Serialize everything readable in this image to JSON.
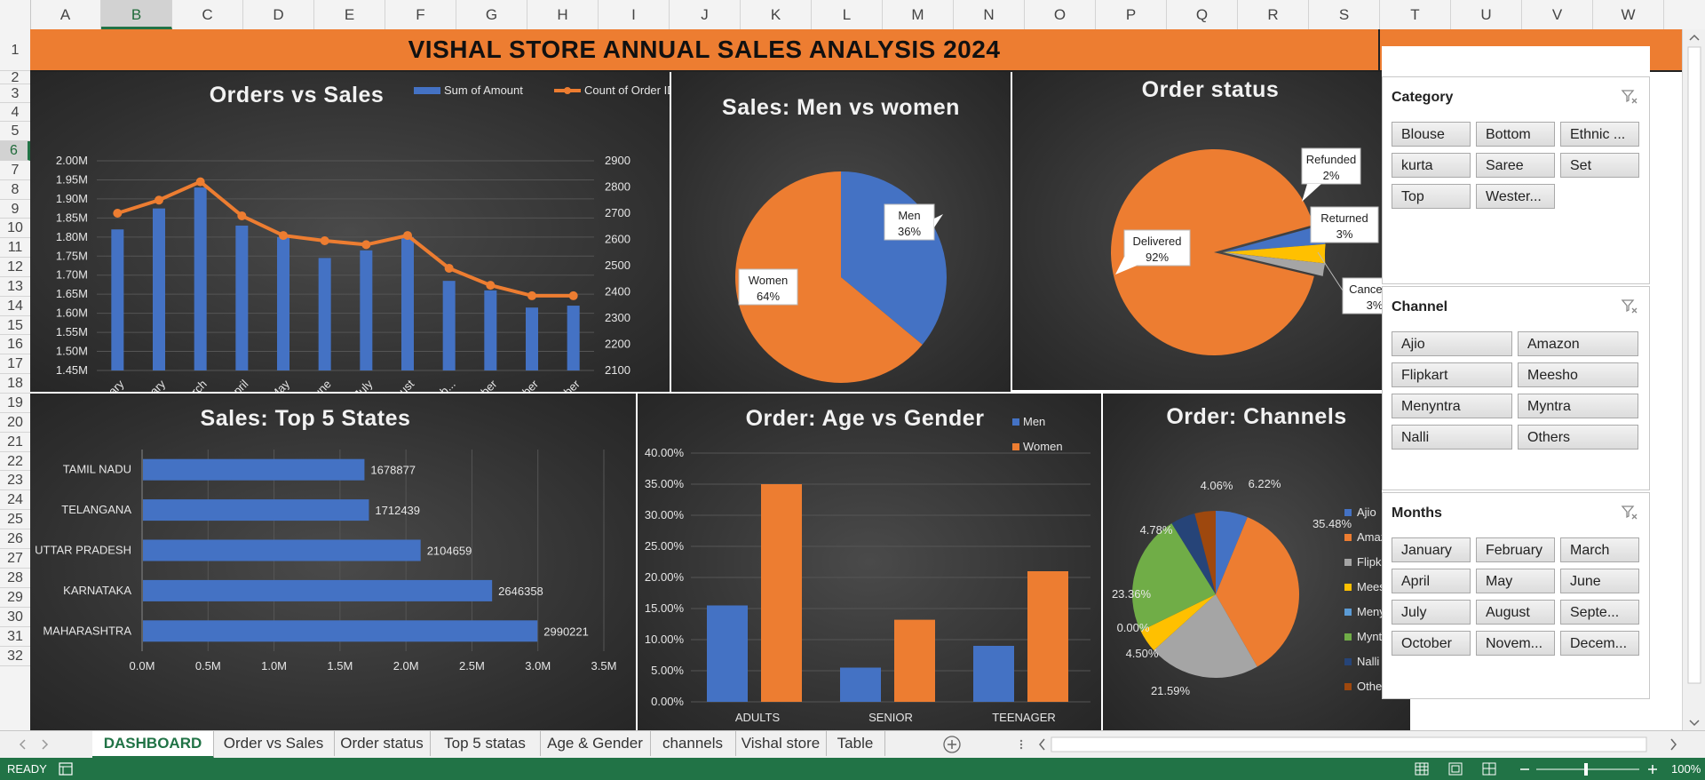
{
  "columns": [
    "A",
    "B",
    "C",
    "D",
    "E",
    "F",
    "G",
    "H",
    "I",
    "J",
    "K",
    "L",
    "M",
    "N",
    "O",
    "P",
    "Q",
    "R",
    "S",
    "T",
    "U",
    "V",
    "W"
  ],
  "rows": [
    "1",
    "2",
    "3",
    "4",
    "5",
    "6",
    "7",
    "8",
    "9",
    "10",
    "11",
    "12",
    "13",
    "14",
    "15",
    "16",
    "17",
    "18",
    "19",
    "20",
    "21",
    "22",
    "23",
    "24",
    "25",
    "26",
    "27",
    "28",
    "29",
    "30",
    "31",
    "32"
  ],
  "selected_column": "B",
  "selected_row": "6",
  "title": "VISHAL STORE ANNUAL SALES ANALYSIS 2024",
  "orders_vs_sales": {
    "title": "Orders vs Sales",
    "legend": [
      "Sum of Amount",
      "Count of Order ID"
    ],
    "left_ticks": [
      "2.00M",
      "1.95M",
      "1.90M",
      "1.85M",
      "1.80M",
      "1.75M",
      "1.70M",
      "1.65M",
      "1.60M",
      "1.55M",
      "1.50M",
      "1.45M"
    ],
    "right_ticks": [
      "2900",
      "2800",
      "2700",
      "2600",
      "2500",
      "2400",
      "2300",
      "2200",
      "2100"
    ]
  },
  "men_women": {
    "title": "Sales: Men vs women",
    "men_label": "Men",
    "men_pct": "36%",
    "women_label": "Women",
    "women_pct": "64%"
  },
  "order_status": {
    "title": "Order status",
    "labels": [
      {
        "name": "Delivered",
        "pct": "92%"
      },
      {
        "name": "Refunded",
        "pct": "2%"
      },
      {
        "name": "Returned",
        "pct": "3%"
      },
      {
        "name": "Cancelled",
        "pct": "3%"
      }
    ]
  },
  "top_states": {
    "title": "Sales: Top 5 States",
    "xticks": [
      "0.0M",
      "0.5M",
      "1.0M",
      "1.5M",
      "2.0M",
      "2.5M",
      "3.0M",
      "3.5M"
    ]
  },
  "age_gender": {
    "title": "Order: Age vs Gender",
    "legend": [
      "Men",
      "Women"
    ],
    "yticks": [
      "40.00%",
      "35.00%",
      "30.00%",
      "25.00%",
      "20.00%",
      "15.00%",
      "10.00%",
      "5.00%",
      "0.00%"
    ]
  },
  "channels_chart": {
    "title": "Order: Channels"
  },
  "chart_data": [
    {
      "type": "bar",
      "title": "Orders vs Sales",
      "categories": [
        "January",
        "February",
        "March",
        "April",
        "May",
        "June",
        "July",
        "August",
        "Septemb...",
        "October",
        "November",
        "December"
      ],
      "series": [
        {
          "name": "Sum of Amount",
          "type": "bar",
          "axis": "left",
          "values": [
            1.82,
            1.875,
            1.93,
            1.83,
            1.8,
            1.745,
            1.765,
            1.8,
            1.685,
            1.66,
            1.615,
            1.62
          ]
        },
        {
          "name": "Count of Order ID",
          "type": "line",
          "axis": "right",
          "values": [
            2700,
            2750,
            2820,
            2690,
            2615,
            2595,
            2580,
            2615,
            2490,
            2425,
            2385,
            2385
          ]
        }
      ],
      "ylim": [
        1.45,
        2.0
      ],
      "y2lim": [
        2100,
        2900
      ],
      "legend": "top-right"
    },
    {
      "type": "pie",
      "title": "Sales: Men vs women",
      "labels": [
        "Men",
        "Women"
      ],
      "values": [
        36,
        64
      ]
    },
    {
      "type": "pie",
      "title": "Order status",
      "labels": [
        "Delivered",
        "Refunded",
        "Returned",
        "Cancelled"
      ],
      "values": [
        92,
        2,
        3,
        3
      ]
    },
    {
      "type": "bar",
      "orientation": "horizontal",
      "title": "Sales: Top 5 States",
      "categories": [
        "TAMIL NADU",
        "TELANGANA",
        "UTTAR PRADESH",
        "KARNATAKA",
        "MAHARASHTRA"
      ],
      "values": [
        1678877,
        1712439,
        2104659,
        2646358,
        2990221
      ],
      "labels": [
        "1678877",
        "1712439",
        "2104659",
        "2646358",
        "2990221"
      ],
      "xlim": [
        0,
        3.5
      ]
    },
    {
      "type": "bar",
      "title": "Order: Age vs Gender",
      "categories": [
        "ADULTS",
        "SENIOR",
        "TEENAGER"
      ],
      "series": [
        {
          "name": "Men",
          "values": [
            15.5,
            5.5,
            9.0
          ]
        },
        {
          "name": "Women",
          "values": [
            35.0,
            13.2,
            21.0
          ]
        }
      ],
      "ylim": [
        0,
        40
      ],
      "legend": "top-right"
    },
    {
      "type": "pie",
      "title": "Order: Channels",
      "labels": [
        "Ajio",
        "Amazon",
        "Flipkart",
        "Meesho",
        "Menyntra",
        "Myntra",
        "Nalli",
        "Others"
      ],
      "values": [
        6.22,
        35.48,
        21.59,
        4.5,
        0.0,
        23.36,
        4.78,
        4.06
      ],
      "value_labels": [
        "6.22%",
        "35.48%",
        "21.59%",
        "4.50%",
        "0.00%",
        "23.36%",
        "4.78%",
        "4.06%"
      ],
      "legend": "right"
    }
  ],
  "colors": {
    "blue": "#4472c4",
    "orange": "#ed7d31",
    "gray": "#a5a5a5",
    "yellow": "#ffc000",
    "light_blue": "#5b9bd5",
    "green": "#70ad47",
    "navy": "#264478",
    "rust": "#9e480e",
    "excel_green": "#217346"
  },
  "slicers": {
    "category": {
      "title": "Category",
      "items": [
        "Blouse",
        "Bottom",
        "Ethnic ...",
        "kurta",
        "Saree",
        "Set",
        "Top",
        "Wester..."
      ]
    },
    "channel": {
      "title": "Channel",
      "items": [
        "Ajio",
        "Amazon",
        "Flipkart",
        "Meesho",
        "Menyntra",
        "Myntra",
        "Nalli",
        "Others"
      ]
    },
    "months": {
      "title": "Months",
      "items": [
        "January",
        "February",
        "March",
        "April",
        "May",
        "June",
        "July",
        "August",
        "Septe...",
        "October",
        "Novem...",
        "Decem..."
      ]
    }
  },
  "tabs": [
    "DASHBOARD",
    "Order vs Sales",
    "Order status",
    "Top 5 statas",
    "Age & Gender",
    "channels",
    "Vishal store",
    "Table"
  ],
  "active_tab": "DASHBOARD",
  "status": {
    "ready": "READY",
    "zoom": "100%"
  },
  "icons": {
    "filter_clear": "filter-clear-icon",
    "add_sheet": "plus-circle-icon",
    "macro": "macro-record-icon"
  }
}
